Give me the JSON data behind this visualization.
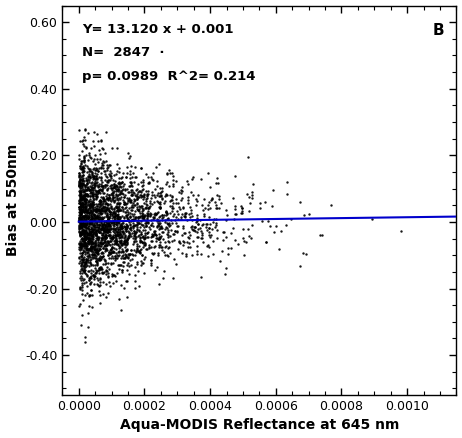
{
  "title": "",
  "xlabel": "Aqua-MODIS Reflectance at 645 nm",
  "ylabel": "Bias at 550nm",
  "panel_label": "B",
  "slope": 13.12,
  "intercept": 0.001,
  "N": 2847,
  "p_value": 0.0989,
  "R2": 0.214,
  "annotation_line1": "Y= 13.120 x + 0.001",
  "annotation_line2": "N=  2847  ·",
  "annotation_line3": "p= 0.0989  R^2= 0.214",
  "xlim": [
    -5e-05,
    0.00115
  ],
  "ylim": [
    -0.52,
    0.65
  ],
  "xticks": [
    0.0,
    0.0002,
    0.0004,
    0.0006,
    0.0008,
    0.001
  ],
  "yticks": [
    -0.4,
    -0.2,
    0.0,
    0.2,
    0.4,
    0.6
  ],
  "scatter_color": "#000000",
  "line_color": "#0000CC",
  "background_color": "#ffffff",
  "seed": 42,
  "n_points": 2847,
  "scatter_size": 3.0,
  "scatter_alpha": 0.9
}
